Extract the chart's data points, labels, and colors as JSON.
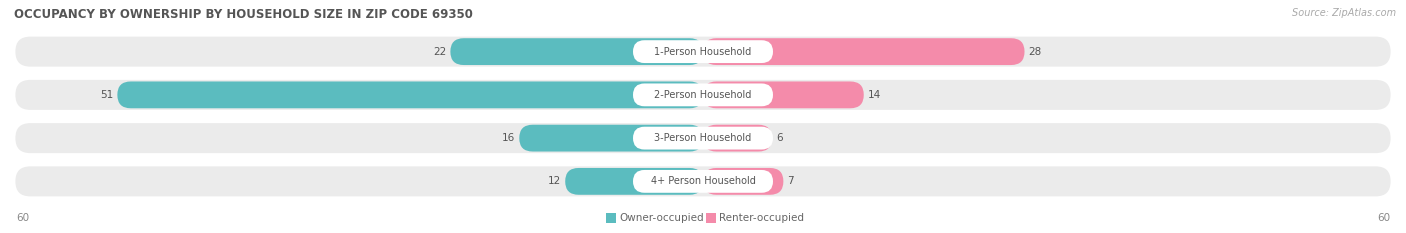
{
  "title": "OCCUPANCY BY OWNERSHIP BY HOUSEHOLD SIZE IN ZIP CODE 69350",
  "source": "Source: ZipAtlas.com",
  "categories": [
    "1-Person Household",
    "2-Person Household",
    "3-Person Household",
    "4+ Person Household"
  ],
  "owner_values": [
    22,
    51,
    16,
    12
  ],
  "renter_values": [
    28,
    14,
    6,
    7
  ],
  "owner_color": "#5bbcbf",
  "renter_color": "#f48baa",
  "axis_max": 60,
  "row_bg_color": "#ebebeb",
  "label_bg_color": "#ffffff",
  "title_color": "#555555",
  "source_color": "#aaaaaa",
  "value_color_dark": "#555555",
  "value_color_light": "#ffffff",
  "cat_label_color": "#555555",
  "legend_label_owner": "Owner-occupied",
  "legend_label_renter": "Renter-occupied",
  "fig_width": 14.06,
  "fig_height": 2.33,
  "dpi": 100
}
